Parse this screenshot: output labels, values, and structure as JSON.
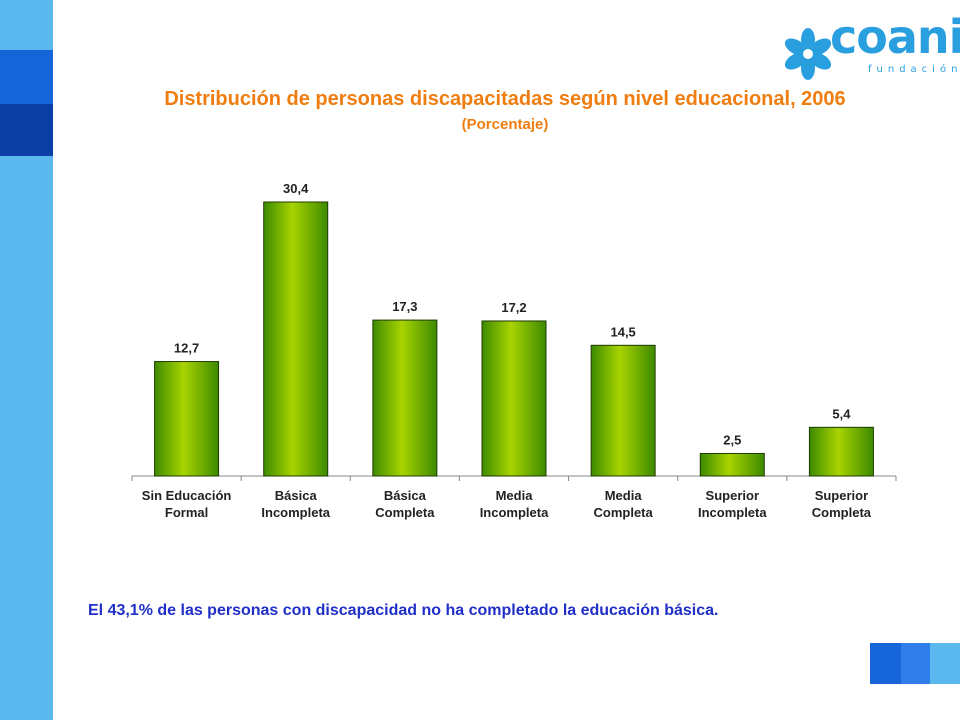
{
  "logo": {
    "word": "coanil",
    "sub": "fundación"
  },
  "footer": "El 43,1% de las personas con discapacidad no ha completado la educación básica.",
  "colors": {
    "title": "#f07d10",
    "bar_dark": "#3d8a00",
    "bar_light": "#a8d400",
    "footer": "#1f2fc8",
    "sidebar": "#5bb8ee"
  },
  "chart_data": {
    "type": "bar",
    "title": "Distribución de personas discapacitadas según nivel educacional, 2006",
    "subtitle": "(Porcentaje)",
    "categories": [
      [
        "Sin Educación",
        "Formal"
      ],
      [
        "Básica",
        "Incompleta"
      ],
      [
        "Básica",
        "Completa"
      ],
      [
        "Media",
        "Incompleta"
      ],
      [
        "Media",
        "Completa"
      ],
      [
        "Superior",
        "Incompleta"
      ],
      [
        "Superior",
        "Completa"
      ]
    ],
    "values": [
      12.7,
      30.4,
      17.3,
      17.2,
      14.5,
      2.5,
      5.4
    ],
    "value_labels": [
      "12,7",
      "30,4",
      "17,3",
      "17,2",
      "14,5",
      "2,5",
      "5,4"
    ],
    "ylim": [
      0,
      30.4
    ],
    "grid": false,
    "legend": "none"
  }
}
